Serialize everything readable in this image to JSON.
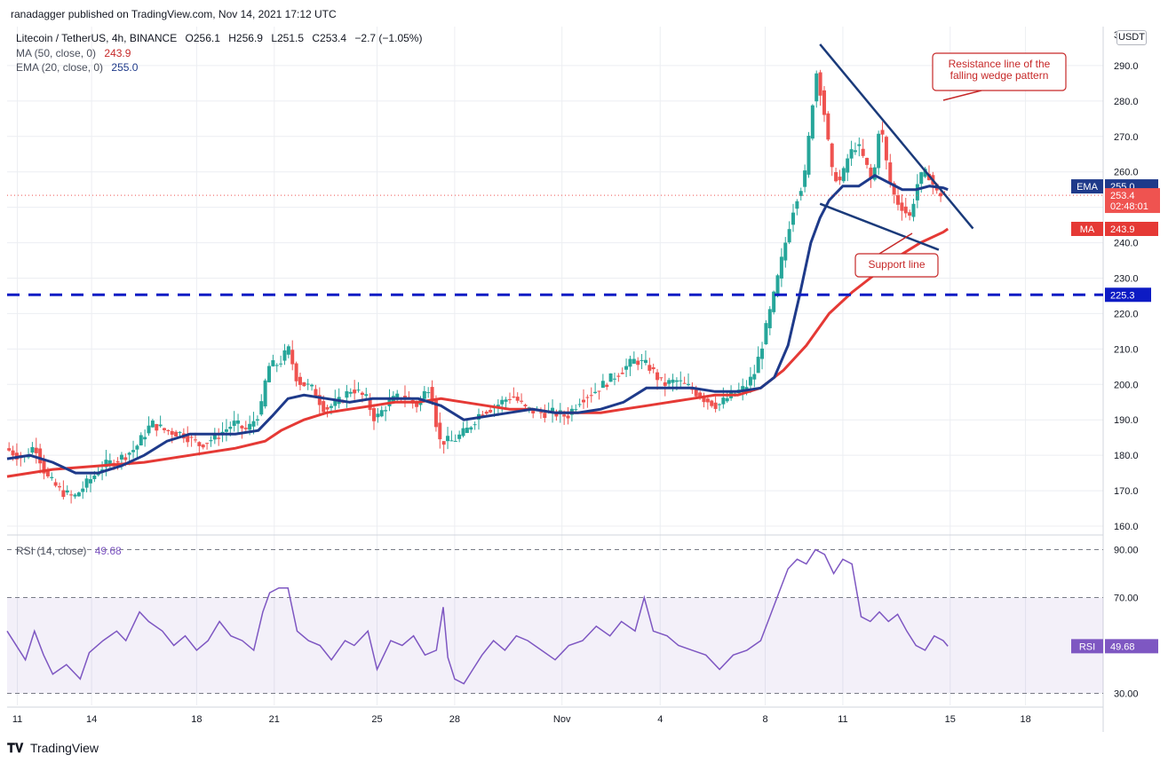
{
  "attribution": "ranadagger published on TradingView.com, Nov 14, 2021 17:12 UTC",
  "header": {
    "symbol": "Litecoin / TetherUS, 4h, BINANCE",
    "ohlc_o": "O256.1",
    "ohlc_h": "H256.9",
    "ohlc_l": "L251.5",
    "ohlc_c": "C253.4",
    "change": "−2.7 (−1.05%)",
    "ma_label": "MA (50, close, 0)",
    "ma_value": "243.9",
    "ema_label": "EMA (20, close, 0)",
    "ema_value": "255.0",
    "rsi_label": "RSI (14, close)",
    "rsi_value": "49.68"
  },
  "currency_badge": "USDT",
  "price_axis_top_label": "3",
  "badges": {
    "ema": {
      "label": "EMA",
      "value": "255.0"
    },
    "price": {
      "value": "253.4",
      "countdown": "02:48:01"
    },
    "ma": {
      "label": "MA",
      "value": "243.9"
    },
    "level": {
      "value": "225.3"
    },
    "rsi": {
      "label": "RSI",
      "value": "49.68"
    }
  },
  "annotations": {
    "resistance": "Resistance line of the falling wedge pattern",
    "support": "Support line"
  },
  "footer": "TradingView",
  "colors": {
    "up": "#26a69a",
    "down": "#ef5350",
    "ema": "#1e3a8a",
    "ma": "#e53935",
    "level": "#0d1bc4",
    "wedge": "#1a3a7a",
    "rsi": "#7e57c2"
  },
  "chart_data": {
    "type": "candlestick",
    "price_axis": {
      "ticks": [
        290,
        280,
        270,
        260,
        250,
        240,
        230,
        220,
        210,
        200,
        190,
        180,
        170,
        160
      ],
      "range": [
        158,
        301
      ]
    },
    "x_axis": {
      "range": [
        0,
        48
      ],
      "labels": [
        {
          "t": 0.45,
          "text": "11"
        },
        {
          "t": 3.7,
          "text": "14"
        },
        {
          "t": 8.3,
          "text": "18"
        },
        {
          "t": 11.7,
          "text": "21"
        },
        {
          "t": 16.2,
          "text": "25"
        },
        {
          "t": 19.6,
          "text": "28"
        },
        {
          "t": 24.3,
          "text": "Nov"
        },
        {
          "t": 28.6,
          "text": "4"
        },
        {
          "t": 33.2,
          "text": "8"
        },
        {
          "t": 36.6,
          "text": "11"
        },
        {
          "t": 41.3,
          "text": "15"
        },
        {
          "t": 44.6,
          "text": "18"
        }
      ]
    },
    "price_path": [
      [
        0,
        182
      ],
      [
        0.8,
        179
      ],
      [
        1.3,
        183
      ],
      [
        1.8,
        174
      ],
      [
        2.4,
        170
      ],
      [
        3,
        168
      ],
      [
        3.7,
        173
      ],
      [
        4.3,
        177
      ],
      [
        5,
        179
      ],
      [
        5.7,
        182
      ],
      [
        6.4,
        189
      ],
      [
        7,
        187
      ],
      [
        7.8,
        186
      ],
      [
        8.5,
        183
      ],
      [
        9.2,
        185
      ],
      [
        10,
        189
      ],
      [
        10.6,
        187
      ],
      [
        11.2,
        193
      ],
      [
        11.5,
        205
      ],
      [
        12,
        206
      ],
      [
        12.4,
        210
      ],
      [
        12.8,
        201
      ],
      [
        13.4,
        199
      ],
      [
        14,
        193
      ],
      [
        14.6,
        195
      ],
      [
        15.2,
        199
      ],
      [
        15.8,
        196
      ],
      [
        16.2,
        190
      ],
      [
        16.8,
        195
      ],
      [
        17.4,
        197
      ],
      [
        18,
        194
      ],
      [
        18.6,
        200
      ],
      [
        19,
        184
      ],
      [
        19.6,
        184
      ],
      [
        20.2,
        187
      ],
      [
        20.8,
        192
      ],
      [
        21.5,
        194
      ],
      [
        22.2,
        197
      ],
      [
        22.8,
        193
      ],
      [
        23.4,
        192
      ],
      [
        24,
        192
      ],
      [
        24.6,
        191
      ],
      [
        25.2,
        196
      ],
      [
        25.8,
        198
      ],
      [
        26.4,
        201
      ],
      [
        27,
        204
      ],
      [
        27.6,
        207
      ],
      [
        28.2,
        205
      ],
      [
        28.8,
        200
      ],
      [
        29.4,
        201
      ],
      [
        30,
        199
      ],
      [
        30.6,
        196
      ],
      [
        31.2,
        194
      ],
      [
        31.8,
        197
      ],
      [
        32.4,
        199
      ],
      [
        32.8,
        203
      ],
      [
        33.1,
        210
      ],
      [
        33.4,
        218
      ],
      [
        33.7,
        226
      ],
      [
        34,
        235
      ],
      [
        34.3,
        244
      ],
      [
        34.6,
        252
      ],
      [
        35,
        258
      ],
      [
        35.3,
        276
      ],
      [
        35.5,
        289
      ],
      [
        35.8,
        280
      ],
      [
        36.2,
        260
      ],
      [
        36.6,
        257
      ],
      [
        36.9,
        264
      ],
      [
        37.3,
        268
      ],
      [
        37.7,
        262
      ],
      [
        38,
        256
      ],
      [
        38.3,
        275
      ],
      [
        38.7,
        258
      ],
      [
        39,
        252
      ],
      [
        39.3,
        250
      ],
      [
        39.6,
        247
      ],
      [
        40,
        258
      ],
      [
        40.4,
        260
      ],
      [
        40.8,
        254
      ],
      [
        41.2,
        253.4
      ]
    ],
    "ema20_path": [
      [
        0,
        179
      ],
      [
        1,
        180
      ],
      [
        2,
        178
      ],
      [
        3,
        175
      ],
      [
        4,
        175
      ],
      [
        5,
        177
      ],
      [
        6,
        180
      ],
      [
        7,
        184
      ],
      [
        8,
        186
      ],
      [
        9,
        186
      ],
      [
        10,
        186
      ],
      [
        11,
        187
      ],
      [
        11.6,
        191
      ],
      [
        12.3,
        196
      ],
      [
        13,
        197
      ],
      [
        14,
        196
      ],
      [
        15,
        195
      ],
      [
        16,
        196
      ],
      [
        17,
        196
      ],
      [
        18,
        196
      ],
      [
        19,
        194
      ],
      [
        20,
        190
      ],
      [
        21,
        191
      ],
      [
        22,
        192
      ],
      [
        23,
        193
      ],
      [
        24,
        192
      ],
      [
        25,
        192
      ],
      [
        26,
        193
      ],
      [
        27,
        195
      ],
      [
        28,
        199
      ],
      [
        29,
        199
      ],
      [
        30,
        199
      ],
      [
        31,
        198
      ],
      [
        32,
        198
      ],
      [
        33,
        199
      ],
      [
        33.6,
        202
      ],
      [
        34.2,
        211
      ],
      [
        34.7,
        225
      ],
      [
        35.2,
        240
      ],
      [
        35.6,
        247
      ],
      [
        36,
        252
      ],
      [
        36.6,
        256
      ],
      [
        37.3,
        256
      ],
      [
        38,
        259
      ],
      [
        38.6,
        257
      ],
      [
        39.2,
        255
      ],
      [
        39.8,
        255
      ],
      [
        40.4,
        256
      ],
      [
        41,
        255.5
      ],
      [
        41.2,
        255
      ]
    ],
    "ma50_path": [
      [
        0,
        174
      ],
      [
        2,
        176
      ],
      [
        4,
        177
      ],
      [
        6,
        178
      ],
      [
        8,
        180
      ],
      [
        10,
        182
      ],
      [
        11.3,
        184
      ],
      [
        12,
        187
      ],
      [
        13,
        190
      ],
      [
        14,
        192
      ],
      [
        15,
        193
      ],
      [
        16,
        194
      ],
      [
        17,
        195
      ],
      [
        18,
        195
      ],
      [
        19,
        196
      ],
      [
        20,
        195
      ],
      [
        21,
        194
      ],
      [
        22,
        193
      ],
      [
        23,
        193
      ],
      [
        24,
        192
      ],
      [
        25,
        192
      ],
      [
        26,
        192
      ],
      [
        27,
        193
      ],
      [
        28,
        194
      ],
      [
        29,
        195
      ],
      [
        30,
        196
      ],
      [
        31,
        197
      ],
      [
        32,
        197
      ],
      [
        33,
        199
      ],
      [
        34,
        204
      ],
      [
        35,
        211
      ],
      [
        36,
        220
      ],
      [
        37,
        226
      ],
      [
        38,
        231
      ],
      [
        39,
        236
      ],
      [
        40,
        240
      ],
      [
        41,
        243
      ],
      [
        41.2,
        243.9
      ]
    ],
    "levels": [
      {
        "label": "225.3",
        "value": 225.3,
        "style": "dashed"
      }
    ],
    "trendlines": [
      {
        "name": "Resistance line of the falling wedge pattern",
        "from": [
          35.6,
          296
        ],
        "to": [
          42.3,
          244
        ]
      },
      {
        "name": "Support line",
        "from": [
          35.6,
          251
        ],
        "to": [
          40.8,
          238
        ]
      }
    ],
    "rsi": {
      "levels": [
        90,
        70,
        30
      ],
      "range": [
        25,
        95
      ],
      "path": [
        [
          0,
          56
        ],
        [
          0.8,
          44
        ],
        [
          1.2,
          56
        ],
        [
          1.6,
          46
        ],
        [
          2,
          38
        ],
        [
          2.6,
          42
        ],
        [
          3.2,
          36
        ],
        [
          3.6,
          47
        ],
        [
          4.2,
          52
        ],
        [
          4.8,
          56
        ],
        [
          5.2,
          52
        ],
        [
          5.8,
          64
        ],
        [
          6.2,
          60
        ],
        [
          6.8,
          56
        ],
        [
          7.3,
          50
        ],
        [
          7.8,
          54
        ],
        [
          8.3,
          48
        ],
        [
          8.8,
          52
        ],
        [
          9.3,
          60
        ],
        [
          9.8,
          54
        ],
        [
          10.3,
          52
        ],
        [
          10.8,
          48
        ],
        [
          11.2,
          64
        ],
        [
          11.5,
          72
        ],
        [
          11.9,
          74
        ],
        [
          12.3,
          74
        ],
        [
          12.7,
          56
        ],
        [
          13.2,
          52
        ],
        [
          13.7,
          50
        ],
        [
          14.2,
          44
        ],
        [
          14.8,
          52
        ],
        [
          15.2,
          50
        ],
        [
          15.8,
          56
        ],
        [
          16.2,
          40
        ],
        [
          16.8,
          52
        ],
        [
          17.3,
          50
        ],
        [
          17.8,
          54
        ],
        [
          18.3,
          46
        ],
        [
          18.8,
          48
        ],
        [
          19.1,
          66
        ],
        [
          19.3,
          45
        ],
        [
          19.6,
          36
        ],
        [
          20,
          34
        ],
        [
          20.4,
          40
        ],
        [
          20.8,
          46
        ],
        [
          21.3,
          52
        ],
        [
          21.8,
          48
        ],
        [
          22.3,
          54
        ],
        [
          22.8,
          52
        ],
        [
          23.4,
          48
        ],
        [
          24,
          44
        ],
        [
          24.6,
          50
        ],
        [
          25.2,
          52
        ],
        [
          25.8,
          58
        ],
        [
          26.4,
          54
        ],
        [
          26.9,
          60
        ],
        [
          27.5,
          56
        ],
        [
          27.9,
          70
        ],
        [
          28.3,
          56
        ],
        [
          28.9,
          54
        ],
        [
          29.4,
          50
        ],
        [
          30,
          48
        ],
        [
          30.6,
          46
        ],
        [
          31.2,
          40
        ],
        [
          31.8,
          46
        ],
        [
          32.4,
          48
        ],
        [
          33,
          52
        ],
        [
          33.4,
          62
        ],
        [
          33.8,
          72
        ],
        [
          34.2,
          82
        ],
        [
          34.6,
          86
        ],
        [
          35,
          84
        ],
        [
          35.4,
          90
        ],
        [
          35.8,
          88
        ],
        [
          36.2,
          80
        ],
        [
          36.6,
          86
        ],
        [
          37,
          84
        ],
        [
          37.4,
          62
        ],
        [
          37.8,
          60
        ],
        [
          38.2,
          64
        ],
        [
          38.6,
          60
        ],
        [
          39,
          63
        ],
        [
          39.4,
          56
        ],
        [
          39.8,
          50
        ],
        [
          40.2,
          48
        ],
        [
          40.6,
          54
        ],
        [
          41,
          52
        ],
        [
          41.2,
          49.68
        ]
      ]
    }
  }
}
